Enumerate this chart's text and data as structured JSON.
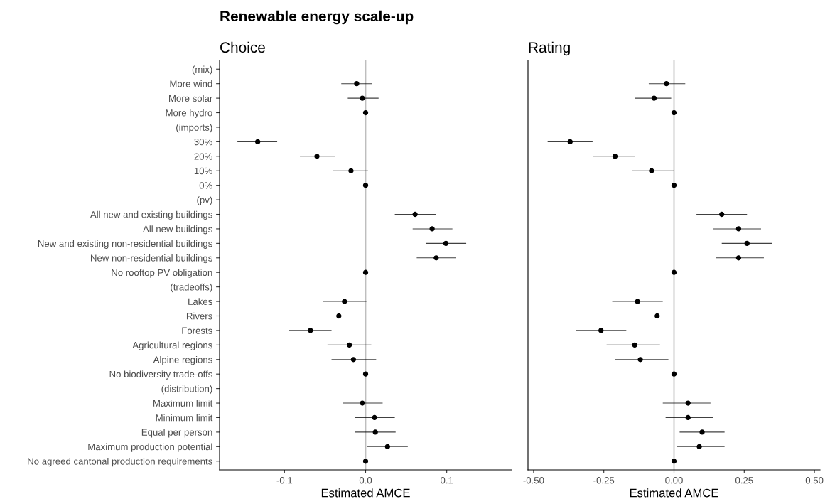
{
  "chart_data": [
    {
      "type": "scatter",
      "orientation": "horizontal",
      "title": "Renewable energy scale-up",
      "subtitle": "Choice",
      "xlabel": "Estimated AMCE",
      "categories": [
        "(mix)",
        "More wind",
        "More solar",
        "More hydro",
        "(imports)",
        "30%",
        "20%",
        "10%",
        "0%",
        "(pv)",
        "All new and existing buildings",
        "All new buildings",
        "New and existing non-residential buildings",
        "New non-residential buildings",
        "No rooftop PV obligation",
        "(tradeoffs)",
        "Lakes",
        "Rivers",
        "Forests",
        "Agricultural regions",
        "Alpine regions",
        "No biodiversity trade-offs",
        "(distribution)",
        "Maximum limit",
        "Minimum limit",
        "Equal per person",
        "Maximum production potential",
        "No agreed cantonal production requirements"
      ],
      "series": [
        {
          "color": "#000000",
          "values": [
            null,
            -0.011,
            -0.004,
            0,
            null,
            -0.133,
            -0.06,
            -0.018,
            0,
            null,
            0.061,
            0.082,
            0.099,
            0.087,
            0,
            null,
            -0.026,
            -0.033,
            -0.068,
            -0.02,
            -0.015,
            0,
            null,
            -0.004,
            0.011,
            0.012,
            0.027,
            0
          ],
          "errors": [
            null,
            [
              -0.03,
              0.008
            ],
            [
              -0.022,
              0.016
            ],
            null,
            null,
            [
              -0.158,
              -0.109
            ],
            [
              -0.081,
              -0.038
            ],
            [
              -0.04,
              0.003
            ],
            null,
            null,
            [
              0.036,
              0.087
            ],
            [
              0.058,
              0.107
            ],
            [
              0.074,
              0.124
            ],
            [
              0.063,
              0.111
            ],
            null,
            null,
            [
              -0.053,
              0.001
            ],
            [
              -0.059,
              -0.005
            ],
            [
              -0.095,
              -0.042
            ],
            [
              -0.047,
              0.007
            ],
            [
              -0.042,
              0.013
            ],
            null,
            null,
            [
              -0.028,
              0.021
            ],
            [
              -0.013,
              0.036
            ],
            [
              -0.013,
              0.037
            ],
            [
              0.002,
              0.052
            ],
            null
          ]
        }
      ],
      "xlim": [
        -0.18,
        0.18
      ],
      "xticks": [
        {
          "value": -0.1,
          "label": "-0.1"
        },
        {
          "value": 0,
          "label": "0.0"
        },
        0.1
      ],
      "ref_lines": [
        {
          "axis": "x",
          "value": 0,
          "color": "#bebebe"
        }
      ],
      "marker": "circle",
      "grid": false
    },
    {
      "type": "scatter",
      "orientation": "horizontal",
      "subtitle": "Rating",
      "xlabel": "Estimated AMCE",
      "categories": [
        null,
        null,
        null,
        null,
        null,
        null,
        null,
        null,
        null,
        null,
        null,
        null,
        null,
        null,
        null,
        null,
        null,
        null,
        null,
        null,
        null,
        null,
        null,
        null,
        null,
        null,
        null,
        null
      ],
      "series": [
        {
          "color": "#000000",
          "values": [
            null,
            -0.027,
            -0.071,
            0,
            null,
            -0.37,
            -0.21,
            -0.08,
            0,
            null,
            0.17,
            0.23,
            0.26,
            0.23,
            0,
            null,
            -0.13,
            -0.06,
            -0.26,
            -0.14,
            -0.12,
            0,
            null,
            0.05,
            0.05,
            0.1,
            0.09,
            0
          ],
          "errors": [
            null,
            [
              -0.09,
              0.04
            ],
            [
              -0.14,
              -0.01
            ],
            null,
            null,
            [
              -0.45,
              -0.29
            ],
            [
              -0.29,
              -0.14
            ],
            [
              -0.15,
              0.0
            ],
            null,
            null,
            [
              0.08,
              0.26
            ],
            [
              0.14,
              0.31
            ],
            [
              0.17,
              0.35
            ],
            [
              0.15,
              0.32
            ],
            null,
            null,
            [
              -0.22,
              -0.04
            ],
            [
              -0.16,
              0.03
            ],
            [
              -0.35,
              -0.17
            ],
            [
              -0.24,
              -0.05
            ],
            [
              -0.21,
              -0.02
            ],
            null,
            null,
            [
              -0.04,
              0.13
            ],
            [
              -0.03,
              0.14
            ],
            [
              0.02,
              0.18
            ],
            [
              0.01,
              0.18
            ],
            null
          ]
        }
      ],
      "xlim": [
        -0.52,
        0.52
      ],
      "xticks": [
        {
          "value": -0.5,
          "label": "-0.50"
        },
        {
          "value": -0.25,
          "label": "-0.25"
        },
        {
          "value": 0,
          "label": "0.00"
        },
        {
          "value": 0.25,
          "label": "0.25"
        },
        {
          "value": 0.5,
          "label": "0.50"
        }
      ],
      "ref_lines": [
        {
          "axis": "x",
          "value": 0,
          "color": "#bebebe"
        }
      ],
      "marker": "circle",
      "grid": false,
      "tick_labels": "x"
    }
  ]
}
